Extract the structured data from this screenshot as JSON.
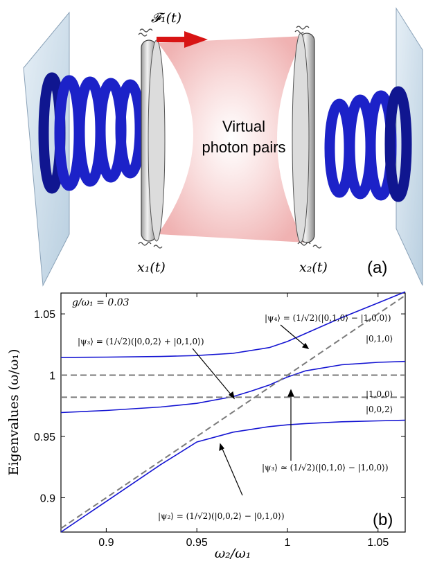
{
  "panel_a": {
    "force_label": "𝓕₁(t)",
    "center_label_line1": "Virtual",
    "center_label_line2": "photon pairs",
    "mirror1_label": "x₁(t)",
    "mirror2_label": "x₂(t)",
    "panel_tag": "(a)",
    "colors": {
      "spring": "#1c22c8",
      "cavity": "#f2b8b8",
      "arrow": "#d81414",
      "wall": "#cfe0ee"
    }
  },
  "panel_b": {
    "panel_tag": "(b)",
    "coupling_label": "g/ω₁ = 0.03",
    "annotations": {
      "psi4": "|ψ₄⟩ = (1/√2)(|0,1,0⟩ − |1,0,0⟩)",
      "psi3_top": "|ψ₃⟩ = (1/√2)(|0,0,2⟩ + |0,1,0⟩)",
      "psi3_bottom": "|ψ₃⟩ ≃ (1/√2)(|0,1,0⟩ − |1,0,0⟩)",
      "psi2": "|ψ₂⟩ = (1/√2)(|0,0,2⟩ − |0,1,0⟩)",
      "state_010": "|0,1,0⟩",
      "state_100": "|1,0,0⟩",
      "state_002": "|0,0,2⟩"
    }
  },
  "chart_data": {
    "type": "line",
    "xlabel": "ω₂/ω₁",
    "ylabel": "Eigenvalues (ω/ω₁)",
    "xlim": [
      0.875,
      1.065
    ],
    "ylim": [
      0.872,
      1.067
    ],
    "xticks": [
      0.9,
      0.95,
      1,
      1.05
    ],
    "xtick_labels": [
      "0.9",
      "0.95",
      "1",
      "1.05"
    ],
    "yticks": [
      0.9,
      0.95,
      1,
      1.05
    ],
    "ytick_labels": [
      "0.9",
      "0.95",
      "1",
      "1.05"
    ],
    "grid": false,
    "series": [
      {
        "style": "solid",
        "color": "#1414d2",
        "x": [
          0.875,
          0.9,
          0.93,
          0.95,
          0.97,
          0.99,
          1.0,
          1.01,
          1.03,
          1.05,
          1.065
        ],
        "y": [
          1.0145,
          1.0147,
          1.0152,
          1.016,
          1.0178,
          1.0225,
          1.0275,
          1.034,
          1.047,
          1.059,
          1.068
        ]
      },
      {
        "style": "solid",
        "color": "#1414d2",
        "x": [
          0.875,
          0.9,
          0.93,
          0.95,
          0.97,
          0.98,
          0.99,
          1.0,
          1.01,
          1.03,
          1.05,
          1.065
        ],
        "y": [
          0.9695,
          0.9712,
          0.974,
          0.977,
          0.9825,
          0.987,
          0.992,
          0.9985,
          1.0035,
          1.0085,
          1.0105,
          1.0112
        ]
      },
      {
        "style": "solid",
        "color": "#1414d2",
        "x": [
          0.875,
          0.9,
          0.93,
          0.95,
          0.97,
          0.99,
          1.0,
          1.01,
          1.03,
          1.05,
          1.065
        ],
        "y": [
          0.872,
          0.897,
          0.927,
          0.9455,
          0.9535,
          0.958,
          0.9595,
          0.9605,
          0.962,
          0.9627,
          0.9632
        ]
      },
      {
        "style": "dashed",
        "color": "#7a7a7a",
        "x": [
          0.875,
          1.065
        ],
        "y": [
          0.875,
          1.065
        ]
      },
      {
        "style": "dashed",
        "color": "#7a7a7a",
        "x": [
          0.875,
          1.065
        ],
        "y": [
          1.0,
          1.0
        ]
      },
      {
        "style": "dashed",
        "color": "#7a7a7a",
        "x": [
          0.875,
          1.065
        ],
        "y": [
          0.982,
          0.982
        ]
      }
    ]
  }
}
